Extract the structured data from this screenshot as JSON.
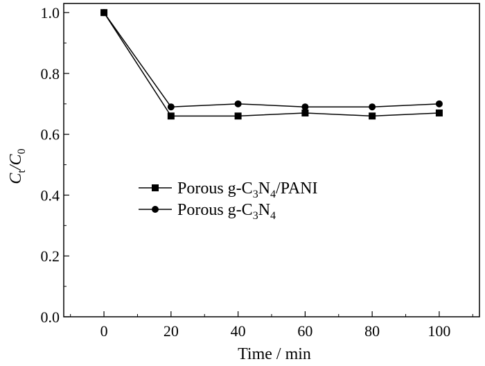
{
  "chart_data": {
    "type": "line",
    "x": [
      0,
      20,
      40,
      60,
      80,
      100
    ],
    "series": [
      {
        "name": "Porous g-C3N4/PANI",
        "marker": "square",
        "values": [
          1.0,
          0.66,
          0.66,
          0.67,
          0.66,
          0.67
        ]
      },
      {
        "name": "Porous g-C3N4",
        "marker": "circle",
        "values": [
          1.0,
          0.69,
          0.7,
          0.69,
          0.69,
          0.7
        ]
      }
    ],
    "xlabel": "Time / min",
    "ylabel": "Ct/C0",
    "xlim": [
      -12,
      112
    ],
    "ylim": [
      0.0,
      1.03
    ],
    "xticks": [
      "0",
      "20",
      "40",
      "60",
      "80",
      "100"
    ],
    "yticks": [
      "0.0",
      "0.2",
      "0.4",
      "0.6",
      "0.8",
      "1.0"
    ],
    "grid": false,
    "legend_position": "center-left",
    "line_color": "#000000"
  }
}
